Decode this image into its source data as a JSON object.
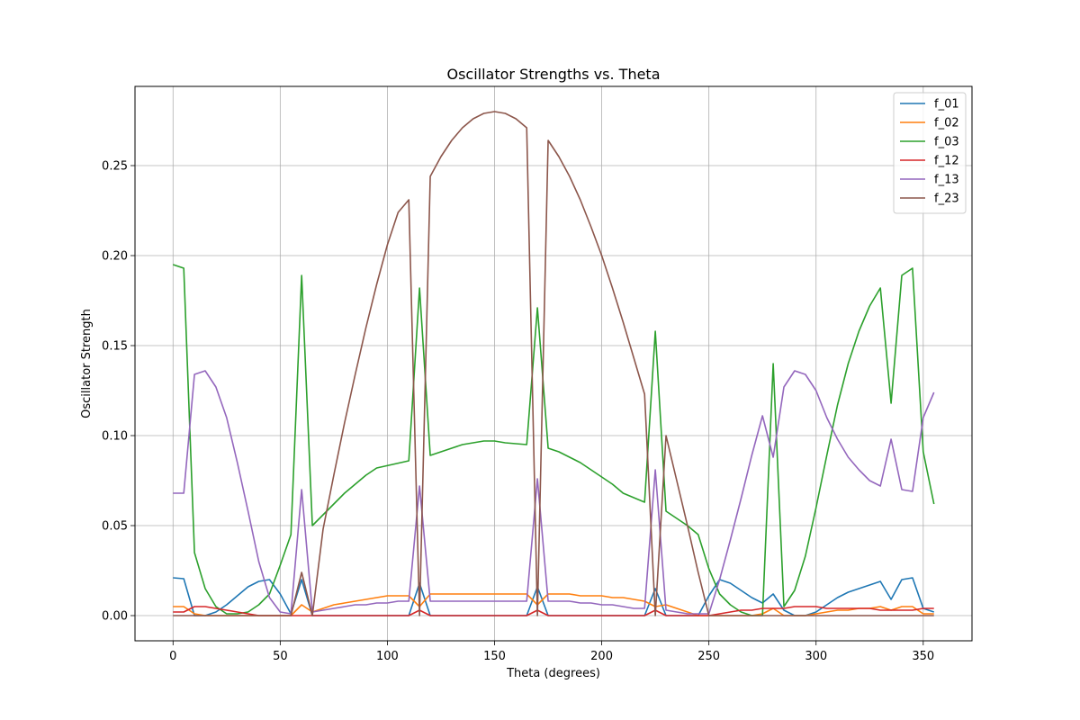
{
  "chart_data": {
    "type": "line",
    "title": "Oscillator Strengths vs. Theta",
    "xlabel": "Theta (degrees)",
    "ylabel": "Oscillator Strength",
    "xlim": [
      -17.75,
      372.75
    ],
    "ylim": [
      -0.014,
      0.294
    ],
    "xticks": [
      0,
      50,
      100,
      150,
      200,
      250,
      300,
      350
    ],
    "yticks": [
      0.0,
      0.05,
      0.1,
      0.15,
      0.2,
      0.25
    ],
    "ytick_labels": [
      "0.00",
      "0.05",
      "0.10",
      "0.15",
      "0.20",
      "0.25"
    ],
    "grid": true,
    "legend_position": "top-right",
    "x": [
      0,
      5,
      10,
      15,
      20,
      25,
      30,
      35,
      40,
      45,
      50,
      55,
      60,
      65,
      70,
      75,
      80,
      85,
      90,
      95,
      100,
      105,
      110,
      115,
      120,
      125,
      130,
      135,
      140,
      145,
      150,
      155,
      160,
      165,
      170,
      175,
      180,
      185,
      190,
      195,
      200,
      205,
      210,
      215,
      220,
      225,
      230,
      235,
      240,
      245,
      250,
      255,
      260,
      265,
      270,
      275,
      280,
      285,
      290,
      295,
      300,
      305,
      310,
      315,
      320,
      325,
      330,
      335,
      340,
      345,
      350,
      355
    ],
    "series": [
      {
        "name": "f_01",
        "color": "#1f77b4",
        "values": [
          0.021,
          0.0205,
          0.0,
          0.0,
          0.002,
          0.006,
          0.011,
          0.016,
          0.019,
          0.02,
          0.012,
          0.001,
          0.02,
          0.0,
          0.0,
          0.0,
          0.0,
          0.0,
          0.0,
          0.0,
          0.0,
          0.0,
          0.0,
          0.018,
          0.0,
          0.0,
          0.0,
          0.0,
          0.0,
          0.0,
          0.0,
          0.0,
          0.0,
          0.0,
          0.016,
          0.0,
          0.0,
          0.0,
          0.0,
          0.0,
          0.0,
          0.0,
          0.0,
          0.0,
          0.0,
          0.015,
          0.0,
          0.0,
          0.0,
          0.0,
          0.011,
          0.02,
          0.018,
          0.014,
          0.01,
          0.007,
          0.012,
          0.003,
          0.0,
          0.0,
          0.002,
          0.006,
          0.01,
          0.013,
          0.015,
          0.017,
          0.019,
          0.009,
          0.02,
          0.021,
          0.004,
          0.002
        ]
      },
      {
        "name": "f_02",
        "color": "#ff7f0e",
        "values": [
          0.005,
          0.005,
          0.001,
          0.0,
          0.0,
          0.0,
          0.0,
          0.0,
          0.0,
          0.0,
          0.0,
          0.0,
          0.006,
          0.002,
          0.004,
          0.006,
          0.007,
          0.008,
          0.009,
          0.01,
          0.011,
          0.011,
          0.011,
          0.005,
          0.012,
          0.012,
          0.012,
          0.012,
          0.012,
          0.012,
          0.012,
          0.012,
          0.012,
          0.012,
          0.006,
          0.012,
          0.012,
          0.012,
          0.011,
          0.011,
          0.011,
          0.01,
          0.01,
          0.009,
          0.008,
          0.005,
          0.006,
          0.004,
          0.002,
          0.0,
          0.0,
          0.0,
          0.0,
          0.0,
          0.0,
          0.001,
          0.004,
          0.0,
          0.0,
          0.0,
          0.001,
          0.002,
          0.003,
          0.003,
          0.004,
          0.004,
          0.005,
          0.003,
          0.005,
          0.005,
          0.001,
          0.001
        ]
      },
      {
        "name": "f_03",
        "color": "#2ca02c",
        "values": [
          0.195,
          0.193,
          0.035,
          0.015,
          0.005,
          0.001,
          0.001,
          0.002,
          0.006,
          0.012,
          0.028,
          0.045,
          0.189,
          0.05,
          0.056,
          0.062,
          0.068,
          0.073,
          0.078,
          0.082,
          0.086,
          0.182,
          0.089,
          0.091,
          0.093,
          0.095,
          0.096,
          0.097,
          0.097,
          0.096,
          0.095,
          0.171,
          0.093,
          0.091,
          0.088,
          0.085,
          0.081,
          0.077,
          0.073,
          0.068,
          0.063,
          0.158,
          0.058,
          0.054,
          0.05,
          0.045,
          0.026,
          0.012,
          0.006,
          0.002,
          0.0,
          0.0,
          0.14,
          0.005,
          0.014,
          0.033,
          0.06,
          0.089,
          0.117,
          0.14,
          0.158,
          0.172,
          0.182,
          0.118,
          0.189,
          0.193,
          0.091,
          0.062
        ],
        "x": [
          0,
          5,
          10,
          15,
          20,
          25,
          30,
          35,
          40,
          45,
          50,
          55,
          60,
          65,
          70,
          75,
          80,
          85,
          90,
          95,
          110,
          115,
          120,
          125,
          130,
          135,
          140,
          145,
          150,
          155,
          165,
          170,
          175,
          180,
          185,
          190,
          195,
          200,
          205,
          210,
          220,
          225,
          230,
          235,
          240,
          245,
          250,
          255,
          260,
          265,
          270,
          275,
          280,
          285,
          290,
          295,
          300,
          305,
          310,
          315,
          320,
          325,
          330,
          335,
          340,
          345,
          350,
          355
        ]
      },
      {
        "name": "f_12",
        "color": "#d62728",
        "values": [
          0.002,
          0.002,
          0.005,
          0.005,
          0.004,
          0.003,
          0.002,
          0.001,
          0.0,
          0.0,
          0.0,
          0.0,
          0.0,
          0.0,
          0.0,
          0.0,
          0.0,
          0.0,
          0.0,
          0.0,
          0.0,
          0.0,
          0.0,
          0.003,
          0.0,
          0.0,
          0.0,
          0.0,
          0.0,
          0.0,
          0.0,
          0.0,
          0.0,
          0.0,
          0.003,
          0.0,
          0.0,
          0.0,
          0.0,
          0.0,
          0.0,
          0.0,
          0.0,
          0.0,
          0.0,
          0.003,
          0.0,
          0.0,
          0.0,
          0.0,
          0.0,
          0.001,
          0.002,
          0.003,
          0.003,
          0.004,
          0.004,
          0.004,
          0.005,
          0.005,
          0.005,
          0.004,
          0.004,
          0.004,
          0.004,
          0.004,
          0.003,
          0.003,
          0.003,
          0.003,
          0.004,
          0.004
        ]
      },
      {
        "name": "f_13",
        "color": "#9467bd",
        "values": [
          0.068,
          0.068,
          0.134,
          0.136,
          0.127,
          0.11,
          0.085,
          0.058,
          0.03,
          0.01,
          0.002,
          0.001,
          0.07,
          0.002,
          0.003,
          0.004,
          0.005,
          0.006,
          0.006,
          0.007,
          0.007,
          0.008,
          0.008,
          0.072,
          0.008,
          0.008,
          0.008,
          0.008,
          0.008,
          0.008,
          0.008,
          0.008,
          0.008,
          0.008,
          0.076,
          0.008,
          0.008,
          0.008,
          0.007,
          0.007,
          0.006,
          0.006,
          0.005,
          0.004,
          0.004,
          0.081,
          0.003,
          0.002,
          0.001,
          0.001,
          0.001,
          0.02,
          0.042,
          0.065,
          0.089,
          0.111,
          0.088,
          0.127,
          0.136,
          0.134,
          0.125,
          0.11,
          0.098,
          0.088,
          0.081,
          0.075,
          0.072,
          0.098,
          0.07,
          0.069,
          0.11,
          0.124
        ]
      },
      {
        "name": "f_23",
        "color": "#8c564b",
        "values": [
          0.0,
          0.0,
          0.0,
          0.0,
          0.0,
          0.0,
          0.0,
          0.0,
          0.0,
          0.0,
          0.0,
          0.0,
          0.024,
          0.0,
          0.048,
          0.078,
          0.107,
          0.134,
          0.16,
          0.184,
          0.206,
          0.224,
          0.231,
          0.0,
          0.244,
          0.255,
          0.264,
          0.271,
          0.276,
          0.279,
          0.28,
          0.279,
          0.276,
          0.271,
          0.0,
          0.264,
          0.255,
          0.244,
          0.231,
          0.216,
          0.2,
          0.182,
          0.163,
          0.143,
          0.123,
          0.0,
          0.1,
          0.075,
          0.05,
          0.024,
          0.0,
          0.0,
          0.0,
          0.0,
          0.0,
          0.0,
          0.0,
          0.0,
          0.0,
          0.0,
          0.0,
          0.0,
          0.0,
          0.0,
          0.0,
          0.0,
          0.0,
          0.0,
          0.0,
          0.0,
          0.0,
          0.0
        ]
      }
    ]
  }
}
